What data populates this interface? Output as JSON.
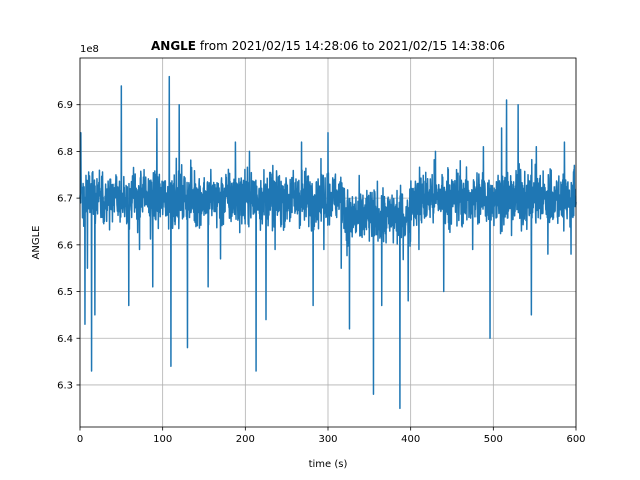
{
  "chart_data": {
    "type": "line",
    "title_bold": "ANGLE",
    "title_rest": " from 2021/02/15 14:28:06 to 2021/02/15 14:38:06",
    "xlabel": "time (s)",
    "ylabel": "ANGLE",
    "offset_text": "1e8",
    "xlim": [
      0,
      600
    ],
    "ylim": [
      6.21,
      7.0
    ],
    "x_ticks": [
      0,
      100,
      200,
      300,
      400,
      500,
      600
    ],
    "x_tick_labels": [
      "0",
      "100",
      "200",
      "300",
      "400",
      "500",
      "600"
    ],
    "y_ticks": [
      6.3,
      6.4,
      6.5,
      6.6,
      6.7,
      6.8,
      6.9
    ],
    "y_tick_labels": [
      "6.3",
      "6.4",
      "6.5",
      "6.6",
      "6.7",
      "6.8",
      "6.9"
    ],
    "grid": true,
    "color": "#1f77b4",
    "series": [
      {
        "values_note_unit": "1e8",
        "x_start": 0,
        "x_end": 600,
        "baseline_segments": [
          {
            "x": [
              0,
              320
            ],
            "mean": 6.7,
            "band": 0.08
          },
          {
            "x": [
              320,
              400
            ],
            "mean": 6.66,
            "band": 0.08
          },
          {
            "x": [
              400,
              600
            ],
            "mean": 6.7,
            "band": 0.08
          }
        ],
        "spikes": [
          [
            1,
            6.84
          ],
          [
            6,
            6.43
          ],
          [
            9,
            6.55
          ],
          [
            14,
            6.33
          ],
          [
            18,
            6.45
          ],
          [
            50,
            6.94
          ],
          [
            59,
            6.47
          ],
          [
            72,
            6.59
          ],
          [
            88,
            6.51
          ],
          [
            93,
            6.87
          ],
          [
            108,
            6.96
          ],
          [
            110,
            6.34
          ],
          [
            120,
            6.9
          ],
          [
            130,
            6.38
          ],
          [
            155,
            6.51
          ],
          [
            170,
            6.57
          ],
          [
            188,
            6.82
          ],
          [
            205,
            6.8
          ],
          [
            213,
            6.33
          ],
          [
            225,
            6.44
          ],
          [
            236,
            6.59
          ],
          [
            268,
            6.82
          ],
          [
            282,
            6.47
          ],
          [
            295,
            6.59
          ],
          [
            300,
            6.84
          ],
          [
            316,
            6.55
          ],
          [
            326,
            6.42
          ],
          [
            340,
            6.62
          ],
          [
            355,
            6.28
          ],
          [
            365,
            6.47
          ],
          [
            370,
            6.65
          ],
          [
            387,
            6.25
          ],
          [
            397,
            6.48
          ],
          [
            410,
            6.59
          ],
          [
            430,
            6.8
          ],
          [
            440,
            6.5
          ],
          [
            460,
            6.78
          ],
          [
            475,
            6.59
          ],
          [
            488,
            6.81
          ],
          [
            496,
            6.4
          ],
          [
            510,
            6.85
          ],
          [
            516,
            6.91
          ],
          [
            522,
            6.62
          ],
          [
            530,
            6.9
          ],
          [
            542,
            6.75
          ],
          [
            546,
            6.45
          ],
          [
            552,
            6.81
          ],
          [
            566,
            6.58
          ],
          [
            570,
            6.76
          ],
          [
            586,
            6.82
          ],
          [
            594,
            6.58
          ],
          [
            598,
            6.77
          ]
        ]
      }
    ]
  }
}
